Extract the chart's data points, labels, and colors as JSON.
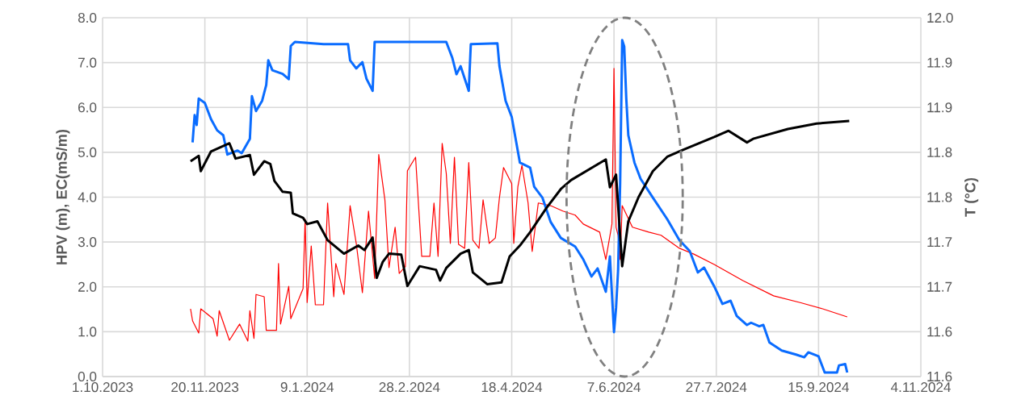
{
  "chart_data": {
    "type": "line",
    "ylabel": "HPV (m), EC(mS/m)",
    "y2label": "T (°C)",
    "grid": true,
    "marker": "none",
    "line_style": "solid",
    "xlim": [
      "2023-10-01",
      "2024-11-04"
    ],
    "xticks": [
      {
        "value": "2023-10-01",
        "label": "1.10.2023"
      },
      {
        "value": "2023-11-20",
        "label": "20.11.2023"
      },
      {
        "value": "2024-01-09",
        "label": "9.1.2024"
      },
      {
        "value": "2024-02-28",
        "label": "28.2.2024"
      },
      {
        "value": "2024-04-18",
        "label": "18.4.2024"
      },
      {
        "value": "2024-06-07",
        "label": "7.6.2024"
      },
      {
        "value": "2024-07-27",
        "label": "27.7.2024"
      },
      {
        "value": "2024-09-15",
        "label": "15.9.2024"
      },
      {
        "value": "2024-11-04",
        "label": "4.11.2024"
      }
    ],
    "ylim": [
      0,
      8
    ],
    "yticks": [
      {
        "value": 0,
        "label": "0.0"
      },
      {
        "value": 1,
        "label": "1.0"
      },
      {
        "value": 2,
        "label": "2.0"
      },
      {
        "value": 3,
        "label": "3.0"
      },
      {
        "value": 4,
        "label": "4.0"
      },
      {
        "value": 5,
        "label": "5.0"
      },
      {
        "value": 6,
        "label": "6.0"
      },
      {
        "value": 7,
        "label": "7.0"
      },
      {
        "value": 8,
        "label": "8.0"
      }
    ],
    "y2lim": [
      11.55,
      11.95
    ],
    "y2ticks": [
      {
        "value": 11.55,
        "label": "11.6"
      },
      {
        "value": 11.6,
        "label": "11.6"
      },
      {
        "value": 11.65,
        "label": "11.7"
      },
      {
        "value": 11.7,
        "label": "11.7"
      },
      {
        "value": 11.75,
        "label": "11.8"
      },
      {
        "value": 11.8,
        "label": "11.8"
      },
      {
        "value": 11.85,
        "label": "11.9"
      },
      {
        "value": 11.9,
        "label": "11.9"
      },
      {
        "value": 11.95,
        "label": "12.0"
      }
    ],
    "series": [
      {
        "color": "#ff0000",
        "x": [
          "2023-11-13",
          "2023-11-14",
          "2023-11-17",
          "2023-11-18",
          "2023-11-24",
          "2023-11-26",
          "2023-11-27",
          "2023-12-02",
          "2023-12-07",
          "2023-12-11",
          "2023-12-12",
          "2023-12-14",
          "2023-12-15",
          "2023-12-19",
          "2023-12-20",
          "2023-12-25",
          "2023-12-26",
          "2023-12-27",
          "2023-12-31",
          "2024-01-01",
          "2024-01-07",
          "2024-01-08",
          "2024-01-09",
          "2024-01-11",
          "2024-01-13",
          "2024-01-17",
          "2024-01-19",
          "2024-01-22",
          "2024-01-23",
          "2024-01-27",
          "2024-01-30",
          "2024-02-02",
          "2024-02-05",
          "2024-02-08",
          "2024-02-11",
          "2024-02-13",
          "2024-02-16",
          "2024-02-18",
          "2024-02-21",
          "2024-02-23",
          "2024-02-26",
          "2024-02-27",
          "2024-03-02",
          "2024-03-05",
          "2024-03-09",
          "2024-03-11",
          "2024-03-13",
          "2024-03-15",
          "2024-03-17",
          "2024-03-19",
          "2024-03-21",
          "2024-03-23",
          "2024-03-26",
          "2024-03-28",
          "2024-03-30",
          "2024-04-02",
          "2024-04-04",
          "2024-04-07",
          "2024-04-10",
          "2024-04-12",
          "2024-04-14",
          "2024-04-18",
          "2024-04-19",
          "2024-04-21",
          "2024-04-23",
          "2024-04-26",
          "2024-04-28",
          "2024-05-01",
          "2024-05-07",
          "2024-05-13",
          "2024-05-19",
          "2024-05-23",
          "2024-05-31",
          "2024-06-03",
          "2024-06-06",
          "2024-06-07",
          "2024-06-08",
          "2024-06-09",
          "2024-06-10",
          "2024-06-11",
          "2024-06-16",
          "2024-06-24",
          "2024-06-30",
          "2024-07-09",
          "2024-07-16",
          "2024-07-26",
          "2024-08-09",
          "2024-08-24",
          "2024-09-06",
          "2024-09-17",
          "2024-09-29"
        ],
        "values": [
          1.51,
          1.24,
          0.97,
          1.51,
          1.29,
          0.9,
          1.47,
          0.81,
          1.17,
          0.79,
          1.47,
          0.85,
          1.83,
          1.78,
          1.03,
          1.03,
          2.52,
          1.17,
          2.01,
          1.29,
          1.96,
          3.51,
          1.65,
          2.91,
          1.6,
          1.6,
          3.87,
          1.78,
          2.52,
          1.83,
          3.81,
          2.97,
          1.87,
          3.69,
          2.19,
          4.95,
          3.94,
          2.43,
          3.33,
          2.3,
          2.45,
          4.59,
          4.89,
          2.68,
          2.68,
          3.87,
          2.68,
          5.2,
          4.53,
          2.97,
          4.89,
          2.95,
          2.86,
          4.77,
          3.04,
          2.86,
          3.94,
          2.97,
          3.09,
          3.99,
          4.66,
          4.3,
          2.97,
          4.23,
          4.71,
          3.87,
          2.79,
          3.87,
          3.81,
          3.69,
          3.6,
          3.4,
          3.22,
          2.61,
          3.4,
          6.87,
          3.33,
          3.15,
          2.61,
          3.81,
          3.33,
          3.22,
          3.15,
          2.86,
          2.73,
          2.5,
          2.14,
          1.8,
          1.65,
          1.51,
          1.33
        ]
      },
      {
        "color": "#0a6cff",
        "x": [
          "2023-11-14",
          "2023-11-15",
          "2023-11-16",
          "2023-11-17",
          "2023-11-20",
          "2023-11-23",
          "2023-11-26",
          "2023-11-29",
          "2023-12-01",
          "2023-12-06",
          "2023-12-08",
          "2023-12-12",
          "2023-12-13",
          "2023-12-15",
          "2023-12-18",
          "2023-12-20",
          "2023-12-21",
          "2023-12-23",
          "2023-12-28",
          "2023-12-31",
          "2024-01-01",
          "2024-01-03",
          "2024-01-17",
          "2024-01-29",
          "2024-01-30",
          "2024-02-02",
          "2024-02-05",
          "2024-02-07",
          "2024-02-10",
          "2024-02-11",
          "2024-03-17",
          "2024-03-20",
          "2024-03-22",
          "2024-03-24",
          "2024-03-28",
          "2024-03-29",
          "2024-04-11",
          "2024-04-12",
          "2024-04-15",
          "2024-04-18",
          "2024-04-22",
          "2024-04-27",
          "2024-04-29",
          "2024-05-03",
          "2024-05-07",
          "2024-05-12",
          "2024-05-19",
          "2024-05-23",
          "2024-05-27",
          "2024-05-30",
          "2024-06-03",
          "2024-06-05",
          "2024-06-07",
          "2024-06-08",
          "2024-06-09",
          "2024-06-10",
          "2024-06-11",
          "2024-06-12",
          "2024-06-13",
          "2024-06-14",
          "2024-06-17",
          "2024-06-20",
          "2024-06-26",
          "2024-07-03",
          "2024-07-09",
          "2024-07-14",
          "2024-07-18",
          "2024-07-21",
          "2024-07-26",
          "2024-07-30",
          "2024-08-03",
          "2024-08-06",
          "2024-08-11",
          "2024-08-13",
          "2024-08-17",
          "2024-08-19",
          "2024-08-22",
          "2024-08-28",
          "2024-09-04",
          "2024-09-08",
          "2024-09-10",
          "2024-09-15",
          "2024-09-18",
          "2024-09-24",
          "2024-09-25",
          "2024-09-28",
          "2024-09-29"
        ],
        "values": [
          5.22,
          5.83,
          5.61,
          6.2,
          6.1,
          5.74,
          5.49,
          5.38,
          4.95,
          5.04,
          4.98,
          5.3,
          6.25,
          5.92,
          6.15,
          6.5,
          7.05,
          6.83,
          6.75,
          6.63,
          7.37,
          7.46,
          7.41,
          7.41,
          7.05,
          6.87,
          7.01,
          6.64,
          6.37,
          7.46,
          7.46,
          7.1,
          6.74,
          6.92,
          6.37,
          7.41,
          7.43,
          6.92,
          6.15,
          5.79,
          4.77,
          4.66,
          4.23,
          3.99,
          3.45,
          3.09,
          2.9,
          2.61,
          2.23,
          2.41,
          1.89,
          2.68,
          0.99,
          1.53,
          2.37,
          4.3,
          7.5,
          7.36,
          6.2,
          5.38,
          4.77,
          4.41,
          3.99,
          3.51,
          3.04,
          2.8,
          2.32,
          2.43,
          2.01,
          1.62,
          1.69,
          1.35,
          1.15,
          1.2,
          1.12,
          1.15,
          0.76,
          0.58,
          0.49,
          0.43,
          0.54,
          0.45,
          0.09,
          0.09,
          0.25,
          0.28,
          0.09
        ]
      },
      {
        "color": "#000000",
        "axis": "y2",
        "x": [
          "2023-11-13",
          "2023-11-17",
          "2023-11-18",
          "2023-11-23",
          "2023-12-02",
          "2023-12-05",
          "2023-12-12",
          "2023-12-14",
          "2023-12-19",
          "2023-12-22",
          "2023-12-24",
          "2023-12-28",
          "2024-01-01",
          "2024-01-02",
          "2024-01-07",
          "2024-01-09",
          "2024-01-14",
          "2024-01-19",
          "2024-01-27",
          "2024-02-03",
          "2024-02-06",
          "2024-02-10",
          "2024-02-12",
          "2024-02-15",
          "2024-02-18",
          "2024-02-24",
          "2024-02-27",
          "2024-03-04",
          "2024-03-12",
          "2024-03-14",
          "2024-03-17",
          "2024-03-24",
          "2024-03-28",
          "2024-03-30",
          "2024-04-06",
          "2024-04-13",
          "2024-04-17",
          "2024-04-22",
          "2024-04-27",
          "2024-05-05",
          "2024-05-12",
          "2024-05-17",
          "2024-06-03",
          "2024-06-05",
          "2024-06-08",
          "2024-06-11",
          "2024-06-14",
          "2024-06-19",
          "2024-06-26",
          "2024-07-03",
          "2024-07-10",
          "2024-07-26",
          "2024-08-02",
          "2024-08-11",
          "2024-08-14",
          "2024-08-31",
          "2024-09-14",
          "2024-09-30"
        ],
        "values": [
          11.79,
          11.796,
          11.779,
          11.801,
          11.81,
          11.793,
          11.797,
          11.775,
          11.79,
          11.787,
          11.768,
          11.756,
          11.755,
          11.732,
          11.727,
          11.72,
          11.723,
          11.702,
          11.687,
          11.696,
          11.691,
          11.705,
          11.66,
          11.678,
          11.687,
          11.686,
          11.651,
          11.673,
          11.669,
          11.657,
          11.671,
          11.687,
          11.691,
          11.666,
          11.653,
          11.655,
          11.684,
          11.696,
          11.711,
          11.738,
          11.759,
          11.769,
          11.792,
          11.761,
          11.775,
          11.673,
          11.723,
          11.75,
          11.779,
          11.795,
          11.802,
          11.817,
          11.824,
          11.811,
          11.815,
          11.826,
          11.832,
          11.835
        ]
      }
    ]
  }
}
